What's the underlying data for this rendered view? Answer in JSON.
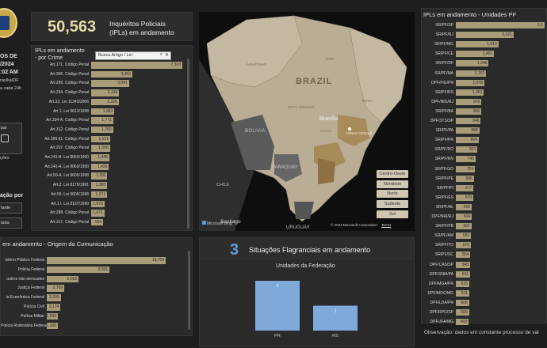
{
  "sidebar": {
    "line1": "OS DE",
    "line2": "/2024",
    "line3": ":02 AM",
    "line4": "rasília/DF",
    "line5": "a cada 24h",
    "btn1_label": "par",
    "group_label": "ação por",
    "opt1": "tante",
    "opt2": "taria",
    "misc": "ções"
  },
  "kpi": {
    "value": "50,563",
    "label_line1": "Inquéritos Policiais",
    "label_line2": "(IPLs) em andamento"
  },
  "crime_panel": {
    "title_line1": "IPLs em andamento",
    "title_line2": "- por Crime",
    "search_placeholder": "Busca Artigo / Lei",
    "rows": [
      {
        "label": "Art.171. Código Penal",
        "value": "7,320",
        "pct": 1.0
      },
      {
        "label": "Art.306. Código Penal",
        "value": "3,303",
        "pct": 0.451
      },
      {
        "label": "Art.299. Código Penal",
        "value": "3,041",
        "pct": 0.415
      },
      {
        "label": "Art.334. Código Penal",
        "value": "2,249",
        "pct": 0.307
      },
      {
        "label": "Art.33. Lei 11343/2006",
        "value": "2,226",
        "pct": 0.304
      },
      {
        "label": "Art 1. Lei 9613/1998",
        "value": "1,863",
        "pct": 0.255
      },
      {
        "label": "Art.334-A. Código Penal",
        "value": "1,771",
        "pct": 0.242
      },
      {
        "label": "Art.312. Código Penal",
        "value": "1,760",
        "pct": 0.24
      },
      {
        "label": "Art.289.§1. Código Penal",
        "value": "1,521",
        "pct": 0.208
      },
      {
        "label": "Art.297. Código Penal",
        "value": "1,506",
        "pct": 0.206
      },
      {
        "label": "Art.241-B. Lei 8069/1990",
        "value": "1,446",
        "pct": 0.198
      },
      {
        "label": "Art.241-A. Lei 8069/1990",
        "value": "1,426",
        "pct": 0.195
      },
      {
        "label": "Art.50-A. Lei 9605/1998",
        "value": "1,303",
        "pct": 0.178
      },
      {
        "label": "Art.2. Lei 8176/1991",
        "value": "1,280",
        "pct": 0.175
      },
      {
        "label": "Art.55. Lei 9605/1998",
        "value": "1,271",
        "pct": 0.174
      },
      {
        "label": "Art.1.I. Lei 8137/1990",
        "value": "1,073",
        "pct": 0.147
      },
      {
        "label": "Art.288. Código Penal",
        "value": "1,071",
        "pct": 0.146
      },
      {
        "label": "Art.317. Código Penal",
        "value": "964",
        "pct": 0.132
      }
    ]
  },
  "origin_panel": {
    "title": "em andamento - Origem da Comunicação",
    "rows": [
      {
        "label": "istério Público Federal",
        "value": "18,764",
        "pct": 1.0
      },
      {
        "label": "Polícia Federal",
        "value": "9,901",
        "pct": 0.528
      },
      {
        "label": "outros não elencados",
        "value": "5,032",
        "pct": 0.268
      },
      {
        "label": "Justiça Federal",
        "value": "2,769",
        "pct": 0.148
      },
      {
        "label": "ia Econômica Federal",
        "value": "2,200",
        "pct": 0.117
      },
      {
        "label": "Polícia Civil",
        "value": "2,174",
        "pct": 0.116
      },
      {
        "label": "Polícia Militar",
        "value": "1,690",
        "pct": 0.09
      },
      {
        "label": "Polícia Rodoviária Federal",
        "value": "1,106",
        "pct": 0.059
      }
    ]
  },
  "map": {
    "labels": {
      "brazil": "BRAZIL",
      "bolivia": "BOLIVIA",
      "paraguay": "PARAGUAY",
      "chile": "CHILE",
      "uruguay": "URUGUAY",
      "santiago": "Santiago",
      "brasilia": "Brasília",
      "amazonas": "AMAZONAS",
      "para": "PARÁ",
      "bahia": "BAHIA",
      "mato_grosso": "MATO GROSSO",
      "minas": "MINAS GERAIS",
      "goias": "GOIÁS"
    },
    "attribution": "© 2024 Microsoft Corporation",
    "terms": "Terms",
    "bing": "Microsoft Bing",
    "regions": [
      "Centro-Oeste",
      "Nordeste",
      "Norte",
      "Sudeste",
      "Sul"
    ]
  },
  "flagrante": {
    "value": "3",
    "title": "Situações Flagranciais em andamento",
    "subtitle": "Unidades da Federação"
  },
  "chart_data": {
    "type": "bar",
    "title": "Unidades da Federação",
    "categories": [
      "PR",
      "RS"
    ],
    "values": [
      2,
      1
    ],
    "ylim": [
      0,
      2
    ]
  },
  "units_panel": {
    "title": "IPLs em andamento - Unidades PF",
    "rows": [
      {
        "label": "SR/PF/SP",
        "value": "5,1",
        "pct": 1.0
      },
      {
        "label": "SR/PF/RJ",
        "value": "3,321",
        "pct": 0.65
      },
      {
        "label": "SR/PF/MG",
        "value": "1,619",
        "pct": 0.48
      },
      {
        "label": "SR/PF/CE",
        "value": "1,461",
        "pct": 0.43
      },
      {
        "label": "SR/PF/DF",
        "value": "1,249",
        "pct": 0.37
      },
      {
        "label": "SR/PF/MA",
        "value": "1,152",
        "pct": 0.34
      },
      {
        "label": "DPF/FIG/PR",
        "value": "1,078",
        "pct": 0.32
      },
      {
        "label": "SR/PF/RS",
        "value": "1,062",
        "pct": 0.315
      },
      {
        "label": "DPF/NIG/RJ",
        "value": "976",
        "pct": 0.29
      },
      {
        "label": "SR/PF/BA",
        "value": "956",
        "pct": 0.285
      },
      {
        "label": "DPF/STS/SP",
        "value": "946",
        "pct": 0.28
      },
      {
        "label": "SR/PF/PA",
        "value": "889",
        "pct": 0.265
      },
      {
        "label": "SR/PF/PR",
        "value": "864",
        "pct": 0.257
      },
      {
        "label": "SR/PF/RO",
        "value": "821",
        "pct": 0.245
      },
      {
        "label": "SR/PF/RN",
        "value": "745",
        "pct": 0.222
      },
      {
        "label": "SR/PF/GO",
        "value": "724",
        "pct": 0.215
      },
      {
        "label": "SR/PF/PE",
        "value": "686",
        "pct": 0.204
      },
      {
        "label": "SR/PF/PI",
        "value": "677",
        "pct": 0.2
      },
      {
        "label": "SR/PF/ES",
        "value": "670",
        "pct": 0.198
      },
      {
        "label": "SR/PF/AL",
        "value": "605",
        "pct": 0.18
      },
      {
        "label": "DPF/NRI/RJ",
        "value": "604",
        "pct": 0.179
      },
      {
        "label": "SR/PF/PB",
        "value": "601",
        "pct": 0.178
      },
      {
        "label": "SR/PF/AM",
        "value": "582",
        "pct": 0.172
      },
      {
        "label": "SR/PF/TO",
        "value": "576",
        "pct": 0.17
      },
      {
        "label": "SR/PF/SC",
        "value": "554",
        "pct": 0.164
      },
      {
        "label": "DPF/CAS/SP",
        "value": "545",
        "pct": 0.161
      },
      {
        "label": "DPF/SNM/PA",
        "value": "541",
        "pct": 0.16
      },
      {
        "label": "DPF/MGA/PR",
        "value": "515",
        "pct": 0.152
      },
      {
        "label": "DPF/MOC/MG",
        "value": "511",
        "pct": 0.151
      },
      {
        "label": "DPF/LDA/PR",
        "value": "500",
        "pct": 0.148
      },
      {
        "label": "DPF/RPO/SP",
        "value": "500",
        "pct": 0.148
      },
      {
        "label": "DPF/JFA/MG",
        "value": "492",
        "pct": 0.146
      }
    ],
    "footer": "Observação: dados em constante processo de val"
  }
}
